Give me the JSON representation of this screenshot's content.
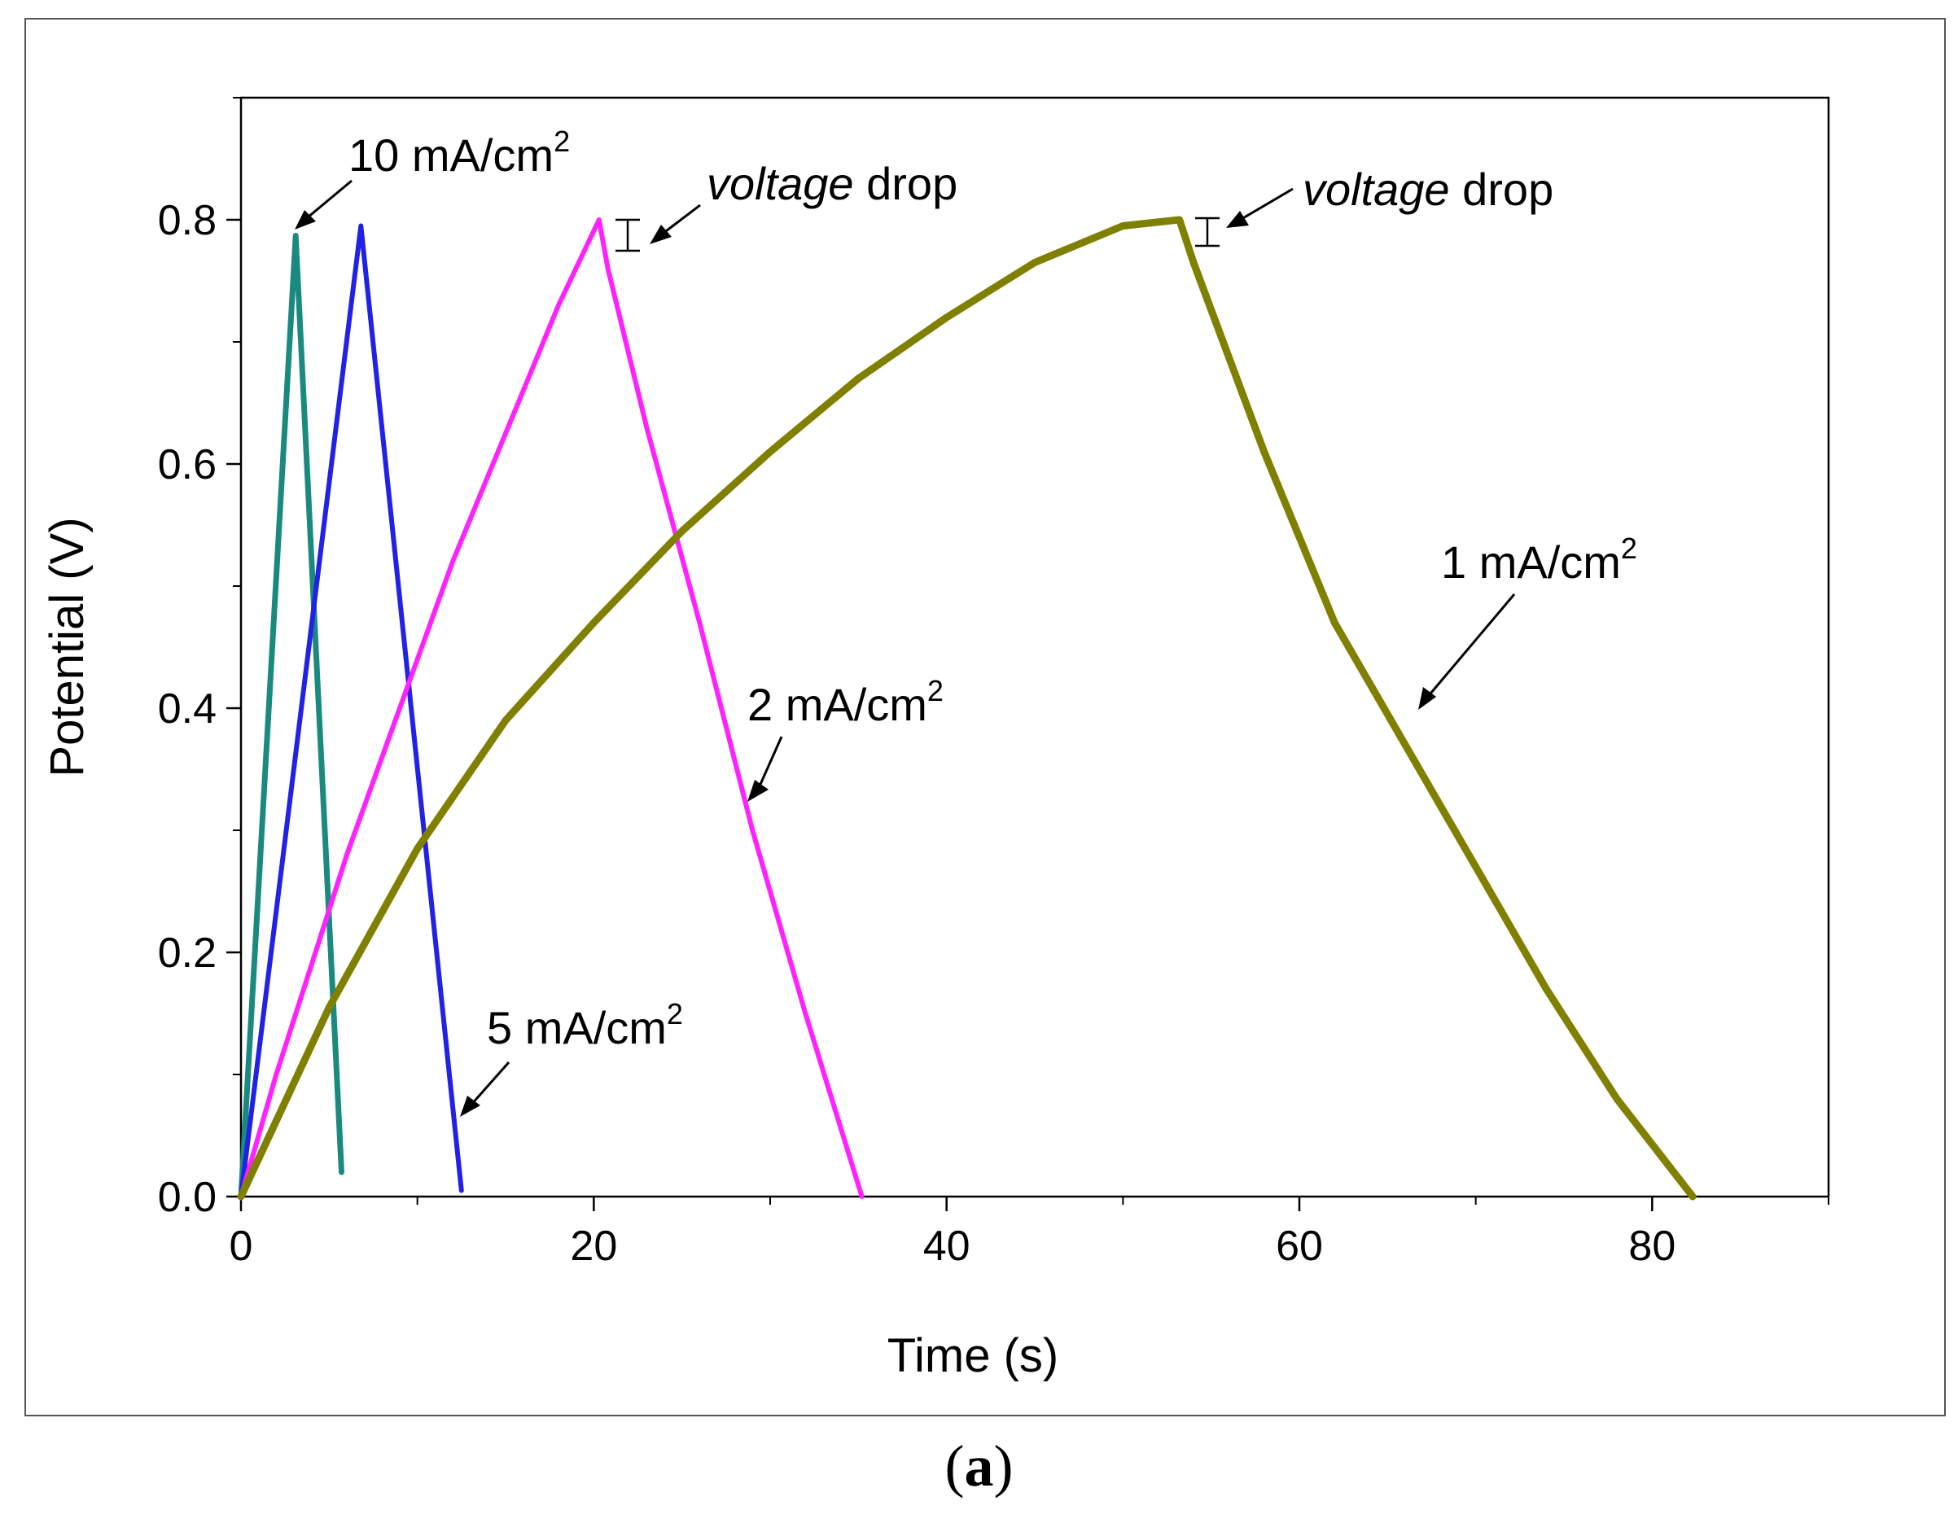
{
  "chart_data": {
    "type": "line",
    "xlabel": "Time (s)",
    "ylabel": "Potential (V)",
    "xlim": [
      0,
      90
    ],
    "ylim": [
      0,
      0.9
    ],
    "xticks": [
      0,
      20,
      40,
      60,
      80
    ],
    "xtick_labels": [
      "0",
      "20",
      "40",
      "60",
      "80"
    ],
    "yticks": [
      0.0,
      0.2,
      0.4,
      0.6,
      0.8
    ],
    "ytick_labels": [
      "0.0",
      "0.2",
      "0.4",
      "0.6",
      "0.8"
    ],
    "series": [
      {
        "name": "10 mA/cm2",
        "color": "#1a8a80",
        "x": [
          0,
          3.1,
          5.7
        ],
        "y": [
          0,
          0.787,
          0.02
        ]
      },
      {
        "name": "5 mA/cm2",
        "color": "#2222e6",
        "x": [
          0,
          6.8,
          12.5
        ],
        "y": [
          0,
          0.795,
          0.005
        ]
      },
      {
        "name": "2 mA/cm2",
        "color": "#ff22ff",
        "x": [
          0,
          2,
          4,
          6,
          8,
          10,
          12,
          14,
          16,
          18,
          20.3,
          20.8,
          23,
          26,
          29,
          32,
          35.2
        ],
        "y": [
          0,
          0.1,
          0.19,
          0.28,
          0.36,
          0.44,
          0.52,
          0.59,
          0.66,
          0.73,
          0.8,
          0.76,
          0.63,
          0.47,
          0.3,
          0.15,
          0.0
        ]
      },
      {
        "name": "1 mA/cm2",
        "color": "#808000",
        "x": [
          0,
          5,
          10,
          15,
          20,
          25,
          30,
          35,
          40,
          45,
          50,
          53.2,
          54,
          58,
          62,
          66,
          70,
          74,
          78,
          82.3
        ],
        "y": [
          0,
          0.155,
          0.285,
          0.39,
          0.47,
          0.545,
          0.61,
          0.67,
          0.72,
          0.765,
          0.795,
          0.8,
          0.765,
          0.61,
          0.47,
          0.37,
          0.27,
          0.17,
          0.08,
          0.0
        ]
      }
    ],
    "annotations": {
      "label_10": {
        "main": "10 mA/cm",
        "sup": "2"
      },
      "label_5": {
        "main": "5 mA/cm",
        "sup": "2"
      },
      "label_2": {
        "main": "2 mA/cm",
        "sup": "2"
      },
      "label_1": {
        "main": "1 mA/cm",
        "sup": "2"
      },
      "voltage_drop_1": {
        "italic": "voltage",
        "rest": " drop"
      },
      "voltage_drop_2": {
        "italic": "voltage",
        "rest": " drop"
      }
    }
  },
  "panel_label": {
    "open": "(",
    "letter": "a",
    "close": ")"
  }
}
